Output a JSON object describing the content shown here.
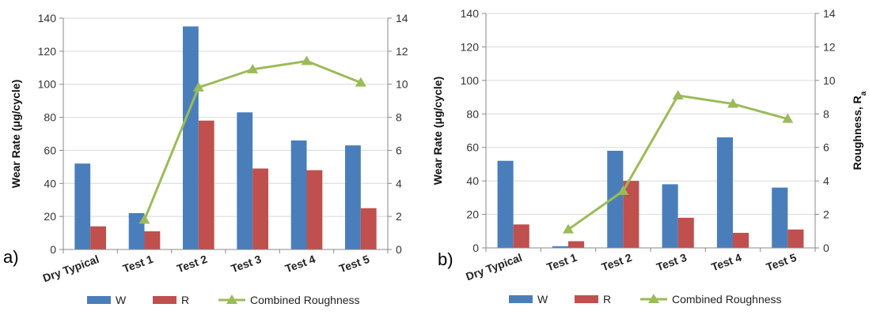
{
  "chart_data": [
    {
      "type": "bar",
      "panel_label": "a)",
      "categories": [
        "Dry Typical",
        "Test 1",
        "Test 2",
        "Test 3",
        "Test 4",
        "Test 5"
      ],
      "ylabel": "Wear Rate (μg/cycle)",
      "y2label": "",
      "ylim": [
        0,
        140
      ],
      "y2lim": [
        0,
        14
      ],
      "yticks": [
        0,
        20,
        40,
        60,
        80,
        100,
        120,
        140
      ],
      "y2ticks": [
        0,
        2,
        4,
        6,
        8,
        10,
        12,
        14
      ],
      "series": [
        {
          "name": "W",
          "type": "bar",
          "axis": "left",
          "color": "#4a7ebb",
          "values": [
            52,
            22,
            135,
            83,
            66,
            63
          ]
        },
        {
          "name": "R",
          "type": "bar",
          "axis": "left",
          "color": "#c0504d",
          "values": [
            14,
            11,
            78,
            49,
            48,
            25
          ]
        },
        {
          "name": "Combined Roughness",
          "type": "line",
          "axis": "right",
          "color": "#9bbb59",
          "values": [
            null,
            1.8,
            9.8,
            10.9,
            11.4,
            10.1
          ]
        }
      ],
      "legend": "bottom",
      "grid": true
    },
    {
      "type": "bar",
      "panel_label": "b)",
      "categories": [
        "Dry Typical",
        "Test 1",
        "Test 2",
        "Test 3",
        "Test 4",
        "Test 5"
      ],
      "ylabel": "Wear Rate (μg/cycle)",
      "y2label": "Roughness, R",
      "y2label_sub": "a",
      "ylim": [
        0,
        140
      ],
      "y2lim": [
        0,
        14
      ],
      "yticks": [
        0,
        20,
        40,
        60,
        80,
        100,
        120,
        140
      ],
      "y2ticks": [
        0,
        2,
        4,
        6,
        8,
        10,
        12,
        14
      ],
      "series": [
        {
          "name": "W",
          "type": "bar",
          "axis": "left",
          "color": "#4a7ebb",
          "values": [
            52,
            1,
            58,
            38,
            66,
            36
          ]
        },
        {
          "name": "R",
          "type": "bar",
          "axis": "left",
          "color": "#c0504d",
          "values": [
            14,
            4,
            40,
            18,
            9,
            11
          ]
        },
        {
          "name": "Combined Roughness",
          "type": "line",
          "axis": "right",
          "color": "#9bbb59",
          "values": [
            null,
            1.1,
            3.4,
            9.1,
            8.6,
            7.7
          ]
        }
      ],
      "legend": "bottom",
      "grid": true
    }
  ]
}
